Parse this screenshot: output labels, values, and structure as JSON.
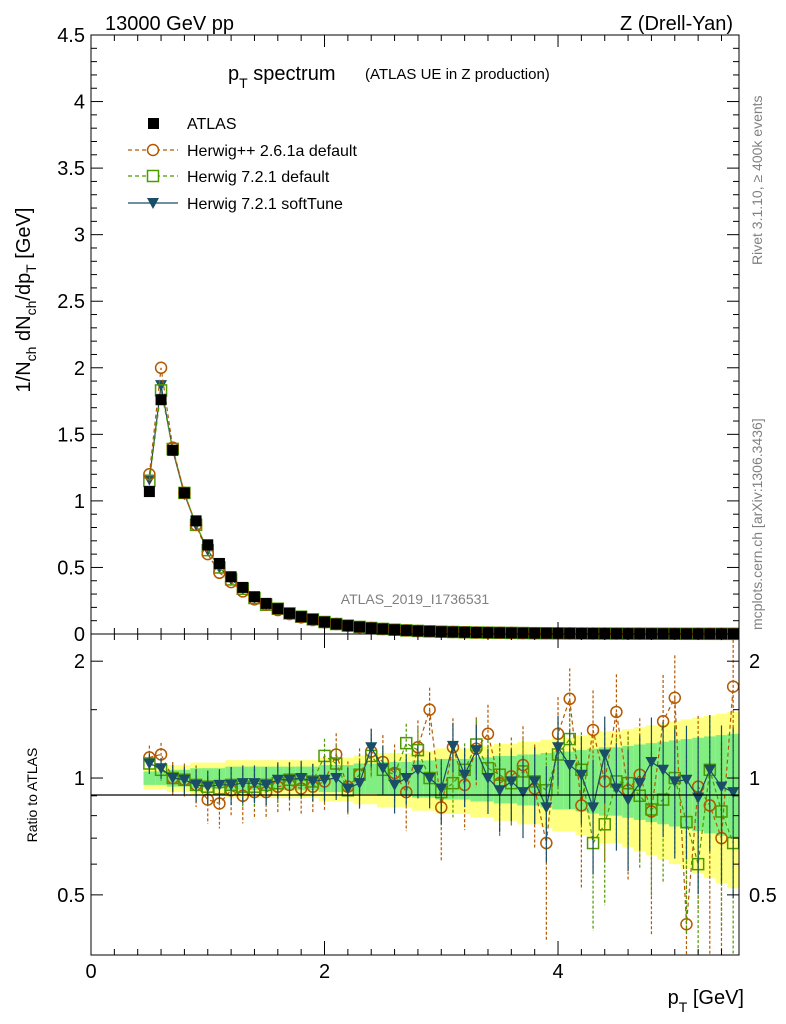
{
  "header": {
    "energy_label": "13000 GeV pp",
    "process_label": "Z (Drell-Yan)"
  },
  "side_labels": {
    "rivet": "Rivet 3.1.10, ≥ 400k events",
    "mcplots": "mcplots.cern.ch [arXiv:1306.3436]"
  },
  "chart_data": [
    {
      "type": "line",
      "panel": "main",
      "title_main": "p",
      "title_sub": "T",
      "title_rest": " spectrum",
      "title_small": "(ATLAS UE in Z production)",
      "ylabel": "1/N_ch dN_ch/dp_T [GeV]",
      "ylabel_parts": {
        "a": "1/N",
        "b": "ch",
        "c": " dN",
        "d": "ch",
        "e": "/dp",
        "f": "T",
        "g": " [GeV]"
      },
      "watermark": "ATLAS_2019_I1736531",
      "xlim": [
        0,
        5.55
      ],
      "ylim": [
        0,
        4.5
      ],
      "yticks": [
        "0",
        "0.5",
        "1",
        "1.5",
        "2",
        "2.5",
        "3",
        "3.5",
        "4",
        "4.5"
      ],
      "x": [
        0.5,
        0.6,
        0.7,
        0.8,
        0.9,
        1.0,
        1.1,
        1.2,
        1.3,
        1.4,
        1.5,
        1.6,
        1.7,
        1.8,
        1.9,
        2.0,
        2.1,
        2.2,
        2.3,
        2.4,
        2.5,
        2.6,
        2.7,
        2.8,
        2.9,
        3.0,
        3.1,
        3.2,
        3.3,
        3.4,
        3.5,
        3.6,
        3.7,
        3.8,
        3.9,
        4.0,
        4.1,
        4.2,
        4.3,
        4.4,
        4.5,
        4.6,
        4.7,
        4.8,
        4.9,
        5.0,
        5.1,
        5.2,
        5.3,
        5.4,
        5.5
      ],
      "series": [
        {
          "name": "ATLAS",
          "color": "#000000",
          "marker": "square-filled",
          "line": "none",
          "values": [
            1.07,
            1.76,
            1.38,
            1.06,
            0.85,
            0.67,
            0.53,
            0.43,
            0.35,
            0.28,
            0.23,
            0.19,
            0.155,
            0.13,
            0.11,
            0.09,
            0.075,
            0.063,
            0.053,
            0.045,
            0.038,
            0.032,
            0.027,
            0.023,
            0.02,
            0.017,
            0.015,
            0.013,
            0.011,
            0.01,
            0.009,
            0.008,
            0.007,
            0.006,
            0.0055,
            0.005,
            0.0045,
            0.004,
            0.0036,
            0.0033,
            0.003,
            0.0027,
            0.0025,
            0.0023,
            0.0021,
            0.0019,
            0.0017,
            0.0016,
            0.0015,
            0.0014,
            0.0013
          ]
        },
        {
          "name": "Herwig++ 2.6.1a default",
          "color": "#b35900",
          "marker": "circle-open",
          "line": "dashed",
          "values": [
            1.2,
            2.0,
            1.4,
            1.06,
            0.82,
            0.6,
            0.46,
            0.39,
            0.32,
            0.26,
            0.22,
            0.18,
            0.15,
            0.125,
            0.105,
            0.088,
            0.075,
            0.062,
            0.052,
            0.045,
            0.038,
            0.032,
            0.027,
            0.023,
            0.02,
            0.017,
            0.015,
            0.013,
            0.011,
            0.01,
            0.009,
            0.008,
            0.007,
            0.006,
            0.0055,
            0.005,
            0.0045,
            0.004,
            0.0036,
            0.0033,
            0.003,
            0.0027,
            0.0025,
            0.0023,
            0.0021,
            0.0019,
            0.0017,
            0.0016,
            0.0015,
            0.0014,
            0.0013
          ]
        },
        {
          "name": "Herwig 7.2.1 default",
          "color": "#4d9900",
          "marker": "square-open",
          "line": "dashed",
          "values": [
            1.15,
            1.83,
            1.39,
            1.06,
            0.82,
            0.63,
            0.5,
            0.41,
            0.34,
            0.27,
            0.22,
            0.19,
            0.155,
            0.13,
            0.11,
            0.09,
            0.075,
            0.063,
            0.053,
            0.045,
            0.038,
            0.032,
            0.027,
            0.023,
            0.02,
            0.017,
            0.015,
            0.013,
            0.011,
            0.01,
            0.009,
            0.008,
            0.007,
            0.006,
            0.0055,
            0.005,
            0.0045,
            0.004,
            0.0036,
            0.0033,
            0.003,
            0.0027,
            0.0025,
            0.0023,
            0.0021,
            0.0019,
            0.0017,
            0.0016,
            0.0015,
            0.0014,
            0.0013
          ]
        },
        {
          "name": "Herwig 7.2.1 softTune",
          "color": "#1a4d66",
          "marker": "triangle-down-filled",
          "line": "solid",
          "values": [
            1.16,
            1.87,
            1.38,
            1.05,
            0.82,
            0.63,
            0.5,
            0.41,
            0.34,
            0.27,
            0.22,
            0.19,
            0.155,
            0.13,
            0.11,
            0.09,
            0.075,
            0.063,
            0.053,
            0.045,
            0.038,
            0.032,
            0.027,
            0.023,
            0.02,
            0.017,
            0.015,
            0.013,
            0.011,
            0.01,
            0.009,
            0.008,
            0.007,
            0.006,
            0.0055,
            0.005,
            0.0045,
            0.004,
            0.0036,
            0.0033,
            0.003,
            0.0027,
            0.0025,
            0.0023,
            0.0021,
            0.0019,
            0.0017,
            0.0016,
            0.0015,
            0.0014,
            0.0013
          ]
        }
      ]
    },
    {
      "type": "line",
      "panel": "ratio",
      "ylabel": "Ratio to ATLAS",
      "xlabel_main": "p",
      "xlabel_sub": "T",
      "xlabel_rest": " [GeV]",
      "xlim": [
        0,
        5.55
      ],
      "ylim": [
        0.35,
        2.35
      ],
      "yticks": [
        "0.5",
        "1",
        "2"
      ],
      "yticks_right": [
        "0.5",
        "1",
        "2"
      ],
      "xticks": [
        "0",
        "2",
        "4"
      ],
      "x": [
        0.5,
        0.6,
        0.7,
        0.8,
        0.9,
        1.0,
        1.1,
        1.2,
        1.3,
        1.4,
        1.5,
        1.6,
        1.7,
        1.8,
        1.9,
        2.0,
        2.1,
        2.2,
        2.3,
        2.4,
        2.5,
        2.6,
        2.7,
        2.8,
        2.9,
        3.0,
        3.1,
        3.2,
        3.3,
        3.4,
        3.5,
        3.6,
        3.7,
        3.8,
        3.9,
        4.0,
        4.1,
        4.2,
        4.3,
        4.4,
        4.5,
        4.6,
        4.7,
        4.8,
        4.9,
        5.0,
        5.1,
        5.2,
        5.3,
        5.4,
        5.5
      ],
      "band_rel_err": [
        0.04,
        0.04,
        0.05,
        0.05,
        0.06,
        0.06,
        0.06,
        0.07,
        0.07,
        0.07,
        0.07,
        0.07,
        0.07,
        0.07,
        0.07,
        0.08,
        0.08,
        0.08,
        0.09,
        0.09,
        0.1,
        0.1,
        0.1,
        0.11,
        0.11,
        0.12,
        0.12,
        0.12,
        0.13,
        0.13,
        0.14,
        0.14,
        0.15,
        0.15,
        0.16,
        0.17,
        0.17,
        0.18,
        0.19,
        0.2,
        0.2,
        0.21,
        0.22,
        0.23,
        0.24,
        0.25,
        0.26,
        0.27,
        0.28,
        0.29,
        0.3
      ],
      "series": [
        {
          "name": "Herwig++ 2.6.1a default",
          "color": "#b35900",
          "marker": "circle-open",
          "line": "dashed",
          "values": [
            1.13,
            1.15,
            1.0,
            0.99,
            0.96,
            0.88,
            0.86,
            0.93,
            0.9,
            0.92,
            0.92,
            0.95,
            0.96,
            0.94,
            0.95,
            0.98,
            1.15,
            0.95,
            1.02,
            1.17,
            1.1,
            1.03,
            0.92,
            1.2,
            1.5,
            0.84,
            1.2,
            0.96,
            1.19,
            1.3,
            0.97,
            1.01,
            1.08,
            0.94,
            0.68,
            1.3,
            1.6,
            0.85,
            1.33,
            0.98,
            1.48,
            0.93,
            1.02,
            0.82,
            1.4,
            1.61,
            0.42,
            0.95,
            0.85,
            0.7,
            1.72
          ]
        },
        {
          "name": "Herwig 7.2.1 default",
          "color": "#4d9900",
          "marker": "square-open",
          "line": "dashed",
          "values": [
            1.09,
            1.05,
            1.0,
            0.99,
            0.96,
            0.95,
            0.94,
            0.96,
            0.95,
            0.95,
            0.96,
            0.97,
            0.99,
            0.99,
            0.98,
            1.14,
            1.09,
            0.93,
            1.02,
            1.14,
            1.05,
            1.02,
            1.23,
            1.18,
            1.0,
            0.92,
            0.97,
            1.05,
            1.22,
            1.06,
            1.02,
            0.97,
            1.04,
            0.98,
            0.93,
            1.15,
            1.26,
            1.05,
            0.68,
            0.76,
            0.98,
            0.97,
            0.9,
            0.83,
            0.88,
            1.0,
            0.77,
            0.6,
            1.05,
            0.82,
            0.68
          ]
        },
        {
          "name": "Herwig 7.2.1 softTune",
          "color": "#1a4d66",
          "marker": "triangle-down-filled",
          "line": "solid",
          "values": [
            1.09,
            1.06,
            1.0,
            0.99,
            0.96,
            0.95,
            0.96,
            0.96,
            0.97,
            0.97,
            0.96,
            0.99,
            0.99,
            1.0,
            0.98,
            0.99,
            1.0,
            0.94,
            0.97,
            1.2,
            1.06,
            0.96,
            1.0,
            1.05,
            1.0,
            0.94,
            1.21,
            1.02,
            1.18,
            1.0,
            0.93,
            0.98,
            0.92,
            0.98,
            0.84,
            1.2,
            1.08,
            1.02,
            0.84,
            1.15,
            0.94,
            0.88,
            0.97,
            1.1,
            1.05,
            0.98,
            0.99,
            0.89,
            1.05,
            0.95,
            0.92
          ]
        }
      ]
    }
  ]
}
